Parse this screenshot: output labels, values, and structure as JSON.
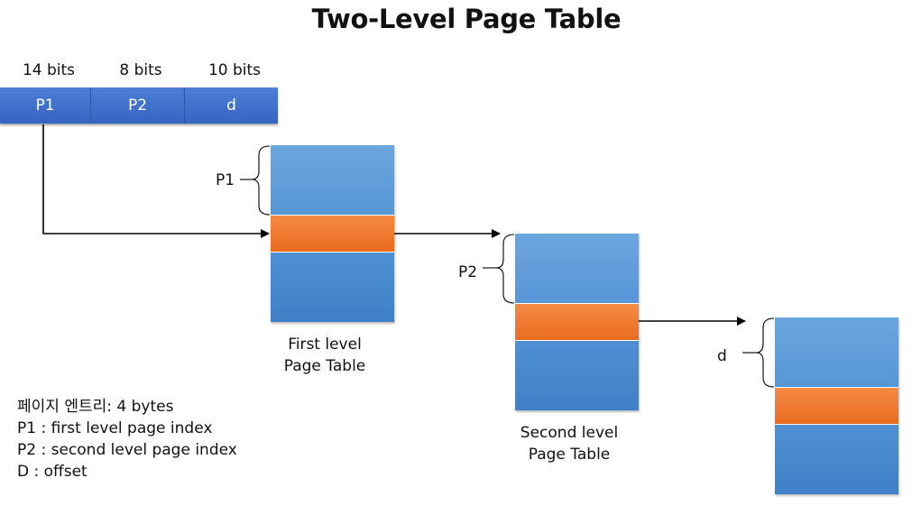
{
  "title": "Two-Level Page Table",
  "address": {
    "fields": [
      {
        "bits": "14 bits",
        "label": "P1"
      },
      {
        "bits": "8 bits",
        "label": "P2"
      },
      {
        "bits": "10 bits",
        "label": "d"
      }
    ]
  },
  "tables": [
    {
      "caption_line1": "First level",
      "caption_line2": "Page Table",
      "index_label": "P1"
    },
    {
      "caption_line1": "Second level",
      "caption_line2": "Page Table",
      "index_label": "P2"
    },
    {
      "caption_line1": "",
      "caption_line2": "",
      "index_label": "d"
    }
  ],
  "legend": [
    "페이지 엔트리: 4 bytes",
    "P1 : first level page index",
    "P2 : second level page index",
    "D : offset"
  ],
  "colors": {
    "address_bar": "#3f6fcc",
    "table_fill": "#5b9bd5",
    "entry_fill": "#ed7d31"
  }
}
